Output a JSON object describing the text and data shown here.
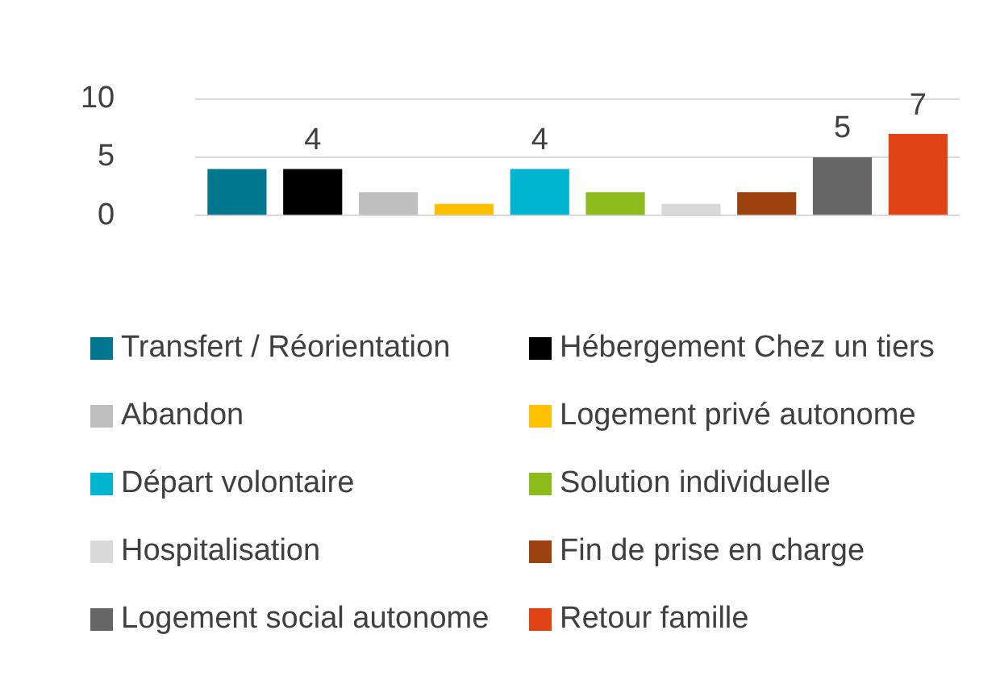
{
  "chart_data": {
    "type": "bar",
    "categories": [
      null
    ],
    "series": [
      {
        "name": "Transfert / Réorientation",
        "color": "#00778f",
        "values": [
          4
        ],
        "value_labels": [
          null
        ]
      },
      {
        "name": "Hébergement Chez un tiers",
        "color": "#000000",
        "values": [
          4
        ],
        "value_labels": [
          "4"
        ]
      },
      {
        "name": "Abandon",
        "color": "#bfbfbf",
        "values": [
          2
        ],
        "value_labels": [
          null
        ]
      },
      {
        "name": "Logement privé autonome",
        "color": "#ffc000",
        "values": [
          1
        ],
        "value_labels": [
          null
        ]
      },
      {
        "name": "Départ volontaire",
        "color": "#00b4d0",
        "values": [
          4
        ],
        "value_labels": [
          "4"
        ]
      },
      {
        "name": "Solution individuelle",
        "color": "#8cbc1c",
        "values": [
          2
        ],
        "value_labels": [
          null
        ]
      },
      {
        "name": "Hospitalisation",
        "color": "#d9d9d9",
        "values": [
          1
        ],
        "value_labels": [
          null
        ]
      },
      {
        "name": "Fin de prise en charge",
        "color": "#9c420e",
        "values": [
          2
        ],
        "value_labels": [
          null
        ]
      },
      {
        "name": "Logement social autonome",
        "color": "#666666",
        "values": [
          5
        ],
        "value_labels": [
          "5"
        ]
      },
      {
        "name": "Retour famille",
        "color": "#e04416",
        "values": [
          7
        ],
        "value_labels": [
          "7"
        ]
      }
    ],
    "ylim": [
      0,
      10
    ],
    "yticks": [
      0,
      5,
      10
    ],
    "grid": "y",
    "legend": "bottom"
  }
}
